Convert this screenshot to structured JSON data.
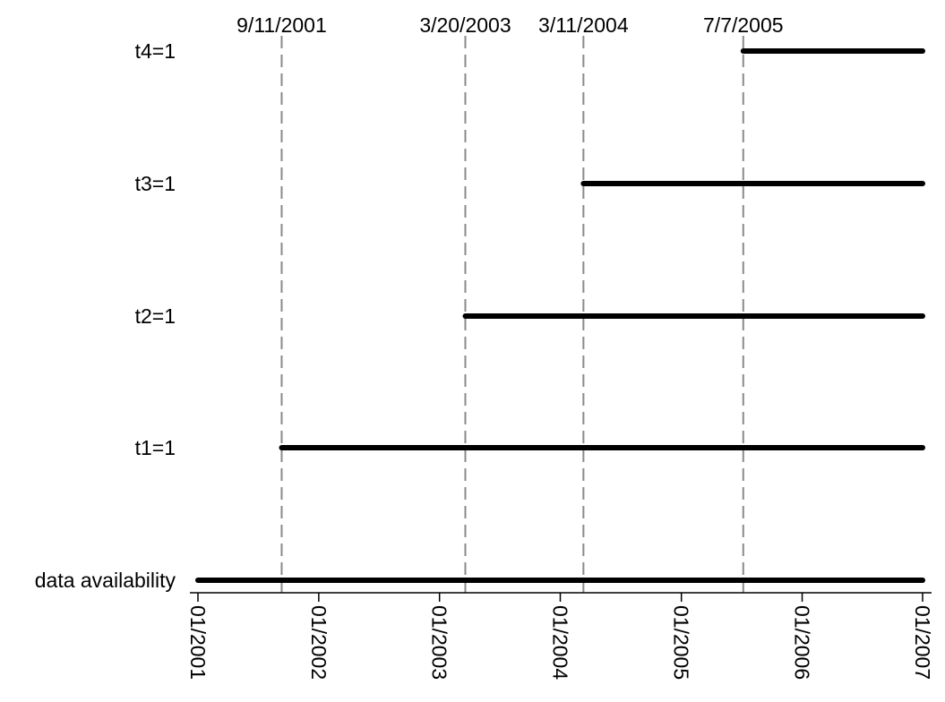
{
  "chart_data": {
    "type": "timeline",
    "x_axis": {
      "type": "date",
      "range": [
        "2001-01-01",
        "2006-12-31"
      ],
      "ticks": [
        {
          "date": "2001-01-01",
          "label": "01/2001"
        },
        {
          "date": "2002-01-01",
          "label": "01/2002"
        },
        {
          "date": "2003-01-01",
          "label": "01/2003"
        },
        {
          "date": "2004-01-01",
          "label": "01/2004"
        },
        {
          "date": "2005-01-01",
          "label": "01/2005"
        },
        {
          "date": "2006-01-01",
          "label": "01/2006"
        },
        {
          "date": "2006-12-31",
          "label": "01/2007"
        }
      ]
    },
    "rows": [
      {
        "label": "t4=1",
        "start": "2005-07-07",
        "end": "2006-12-31"
      },
      {
        "label": "t3=1",
        "start": "2004-03-11",
        "end": "2006-12-31"
      },
      {
        "label": "t2=1",
        "start": "2003-03-20",
        "end": "2006-12-31"
      },
      {
        "label": "t1=1",
        "start": "2001-09-11",
        "end": "2006-12-31"
      },
      {
        "label": "data availability",
        "start": "2001-01-01",
        "end": "2006-12-31"
      }
    ],
    "events": [
      {
        "date": "2001-09-11",
        "label": "9/11/2001"
      },
      {
        "date": "2003-03-20",
        "label": "3/20/2003"
      },
      {
        "date": "2004-03-11",
        "label": "3/11/2004"
      },
      {
        "date": "2005-07-07",
        "label": "7/7/2005"
      }
    ],
    "colors": {
      "bar": "#000000",
      "event_line": "#8a8a8a"
    }
  }
}
